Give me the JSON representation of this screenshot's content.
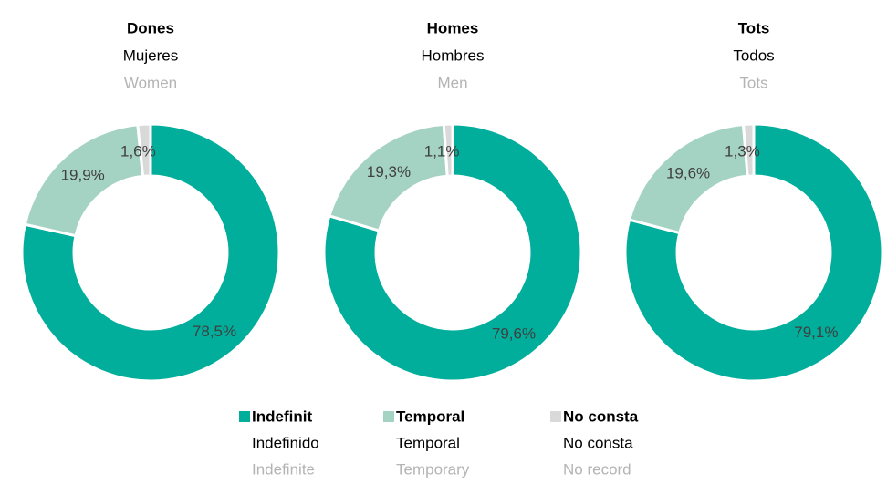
{
  "chart_data": [
    {
      "type": "pie",
      "title": [
        "Dones",
        "Mujeres",
        "Women"
      ],
      "values": [
        78.5,
        19.9,
        1.6
      ],
      "value_labels": [
        "78,5%",
        "19,9%",
        "1,6%"
      ]
    },
    {
      "type": "pie",
      "title": [
        "Homes",
        "Hombres",
        "Men"
      ],
      "values": [
        79.6,
        19.3,
        1.1
      ],
      "value_labels": [
        "79,6%",
        "19,3%",
        "1,1%"
      ]
    },
    {
      "type": "pie",
      "title": [
        "Tots",
        "Todos",
        "Tots"
      ],
      "values": [
        79.1,
        19.6,
        1.3
      ],
      "value_labels": [
        "79,1%",
        "19,6%",
        "1,3%"
      ]
    }
  ],
  "legend": {
    "entries": [
      {
        "labels": [
          "Indefinit",
          "Indefinido",
          "Indefinite"
        ],
        "color": "#00ae9b"
      },
      {
        "labels": [
          "Temporal",
          "Temporal",
          "Temporary"
        ],
        "color": "#a5d3c3"
      },
      {
        "labels": [
          "No consta",
          "No consta",
          "No record"
        ],
        "color": "#d9d9d9"
      }
    ]
  }
}
